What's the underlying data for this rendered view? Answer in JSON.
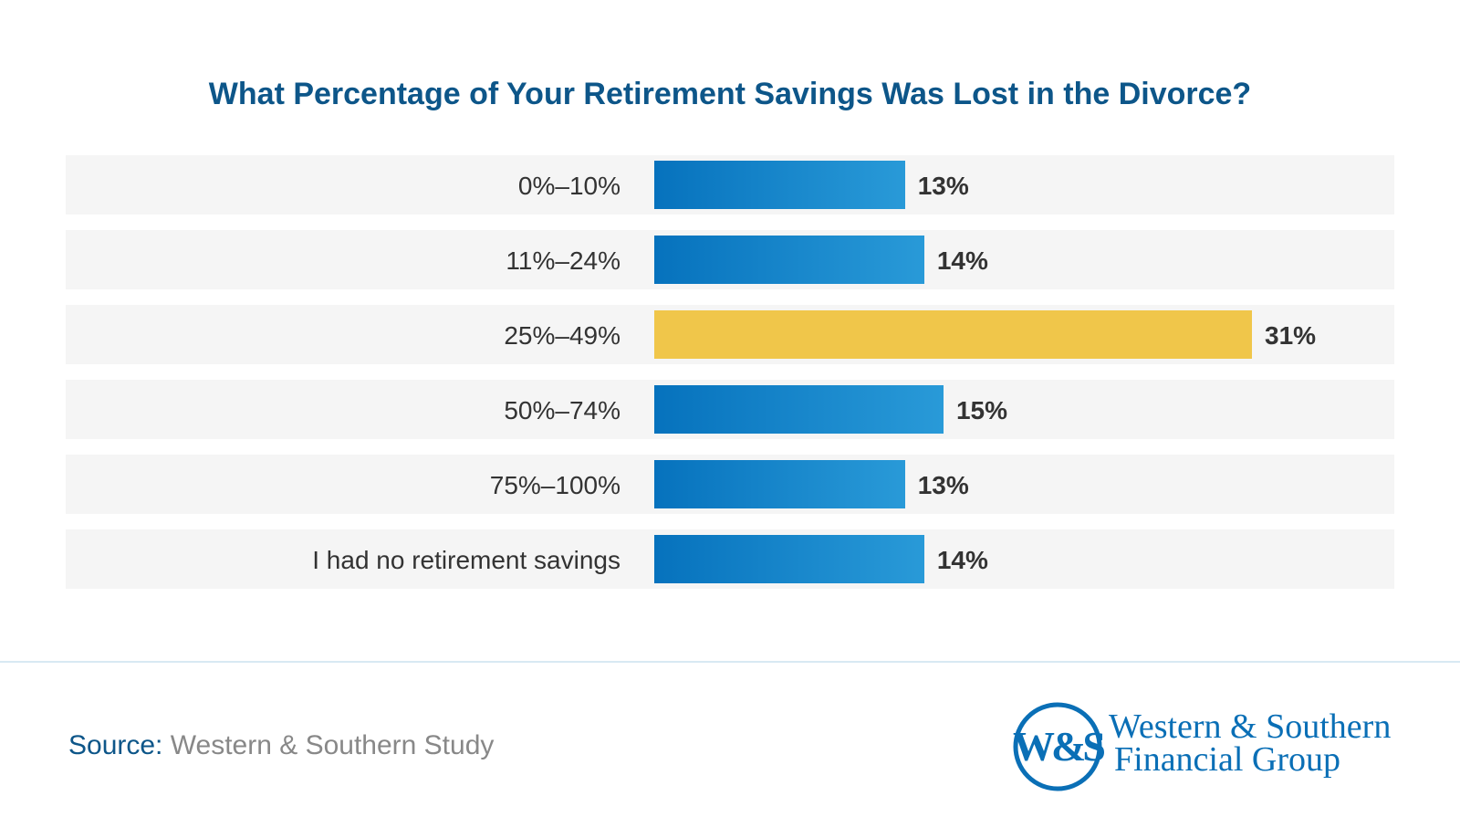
{
  "chart_data": {
    "type": "bar",
    "orientation": "horizontal",
    "title": "What Percentage of Your Retirement Savings Was Lost in the Divorce?",
    "categories": [
      "0%–10%",
      "11%–24%",
      "25%–49%",
      "50%–74%",
      "75%–100%",
      "I had no retirement savings"
    ],
    "values": [
      13,
      14,
      31,
      15,
      13,
      14
    ],
    "value_labels": [
      "13%",
      "14%",
      "31%",
      "15%",
      "13%",
      "14%"
    ],
    "highlight_index": 2,
    "colors": {
      "bar_start": "#0672bd",
      "bar_end": "#299ad8",
      "highlight": "#f0c64a",
      "row_bg": "#f5f5f5",
      "title": "#0d5689"
    },
    "grid": false
  },
  "footer": {
    "source_label": "Source:",
    "source_value": "Western & Southern Study"
  },
  "logo": {
    "monogram": "W&S",
    "line1": "Western & Southern",
    "line2": "Financial Group",
    "color": "#0a6fb6"
  }
}
